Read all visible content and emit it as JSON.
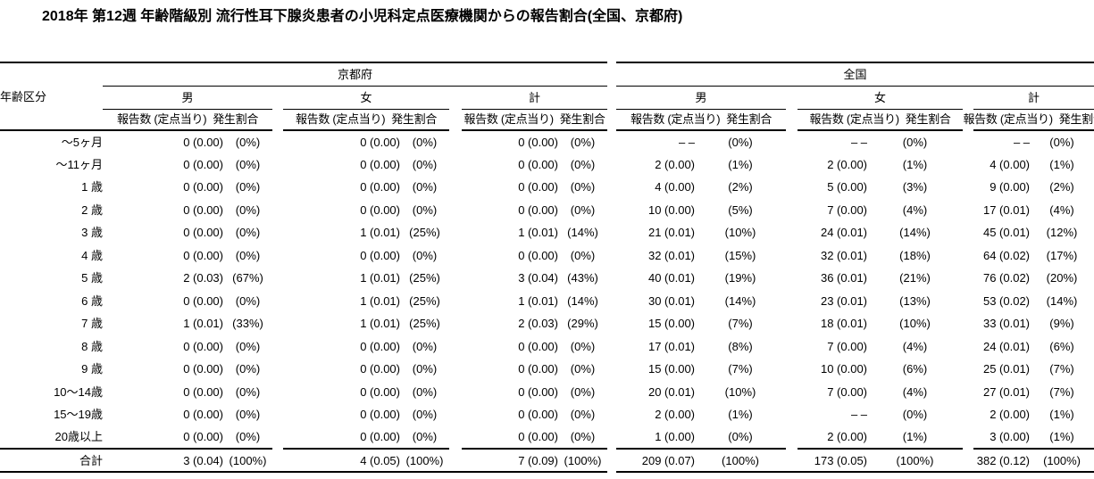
{
  "title": "2018年 第12週 年齢階級別 流行性耳下腺炎患者の小児科定点医療機関からの報告割合(全国、京都府)",
  "table": {
    "age_header": "年齢区分",
    "regions": [
      "京都府",
      "全国"
    ],
    "sex_labels": [
      "男",
      "女",
      "計"
    ],
    "subheaders": {
      "count": "報告数 (定点当り)",
      "rate": "発生割合"
    },
    "rows": [
      {
        "age": "〜5ヶ月",
        "cells": [
          "0 (0.00)",
          "(0%)",
          "0 (0.00)",
          "(0%)",
          "0 (0.00)",
          "(0%)",
          "– –",
          "(0%)",
          "– –",
          "(0%)",
          "– –",
          "(0%)"
        ]
      },
      {
        "age": "〜11ヶ月",
        "cells": [
          "0 (0.00)",
          "(0%)",
          "0 (0.00)",
          "(0%)",
          "0 (0.00)",
          "(0%)",
          "2 (0.00)",
          "(1%)",
          "2 (0.00)",
          "(1%)",
          "4 (0.00)",
          "(1%)"
        ]
      },
      {
        "age": "1 歳",
        "cells": [
          "0 (0.00)",
          "(0%)",
          "0 (0.00)",
          "(0%)",
          "0 (0.00)",
          "(0%)",
          "4 (0.00)",
          "(2%)",
          "5 (0.00)",
          "(3%)",
          "9 (0.00)",
          "(2%)"
        ]
      },
      {
        "age": "2 歳",
        "cells": [
          "0 (0.00)",
          "(0%)",
          "0 (0.00)",
          "(0%)",
          "0 (0.00)",
          "(0%)",
          "10 (0.00)",
          "(5%)",
          "7 (0.00)",
          "(4%)",
          "17 (0.01)",
          "(4%)"
        ]
      },
      {
        "age": "3 歳",
        "cells": [
          "0 (0.00)",
          "(0%)",
          "1 (0.01)",
          "(25%)",
          "1 (0.01)",
          "(14%)",
          "21 (0.01)",
          "(10%)",
          "24 (0.01)",
          "(14%)",
          "45 (0.01)",
          "(12%)"
        ]
      },
      {
        "age": "4 歳",
        "cells": [
          "0 (0.00)",
          "(0%)",
          "0 (0.00)",
          "(0%)",
          "0 (0.00)",
          "(0%)",
          "32 (0.01)",
          "(15%)",
          "32 (0.01)",
          "(18%)",
          "64 (0.02)",
          "(17%)"
        ]
      },
      {
        "age": "5 歳",
        "cells": [
          "2 (0.03)",
          "(67%)",
          "1 (0.01)",
          "(25%)",
          "3 (0.04)",
          "(43%)",
          "40 (0.01)",
          "(19%)",
          "36 (0.01)",
          "(21%)",
          "76 (0.02)",
          "(20%)"
        ]
      },
      {
        "age": "6 歳",
        "cells": [
          "0 (0.00)",
          "(0%)",
          "1 (0.01)",
          "(25%)",
          "1 (0.01)",
          "(14%)",
          "30 (0.01)",
          "(14%)",
          "23 (0.01)",
          "(13%)",
          "53 (0.02)",
          "(14%)"
        ]
      },
      {
        "age": "7 歳",
        "cells": [
          "1 (0.01)",
          "(33%)",
          "1 (0.01)",
          "(25%)",
          "2 (0.03)",
          "(29%)",
          "15 (0.00)",
          "(7%)",
          "18 (0.01)",
          "(10%)",
          "33 (0.01)",
          "(9%)"
        ]
      },
      {
        "age": "8 歳",
        "cells": [
          "0 (0.00)",
          "(0%)",
          "0 (0.00)",
          "(0%)",
          "0 (0.00)",
          "(0%)",
          "17 (0.01)",
          "(8%)",
          "7 (0.00)",
          "(4%)",
          "24 (0.01)",
          "(6%)"
        ]
      },
      {
        "age": "9 歳",
        "cells": [
          "0 (0.00)",
          "(0%)",
          "0 (0.00)",
          "(0%)",
          "0 (0.00)",
          "(0%)",
          "15 (0.00)",
          "(7%)",
          "10 (0.00)",
          "(6%)",
          "25 (0.01)",
          "(7%)"
        ]
      },
      {
        "age": "10〜14歳",
        "cells": [
          "0 (0.00)",
          "(0%)",
          "0 (0.00)",
          "(0%)",
          "0 (0.00)",
          "(0%)",
          "20 (0.01)",
          "(10%)",
          "7 (0.00)",
          "(4%)",
          "27 (0.01)",
          "(7%)"
        ]
      },
      {
        "age": "15〜19歳",
        "cells": [
          "0 (0.00)",
          "(0%)",
          "0 (0.00)",
          "(0%)",
          "0 (0.00)",
          "(0%)",
          "2 (0.00)",
          "(1%)",
          "– –",
          "(0%)",
          "2 (0.00)",
          "(1%)"
        ]
      },
      {
        "age": "20歳以上",
        "cells": [
          "0 (0.00)",
          "(0%)",
          "0 (0.00)",
          "(0%)",
          "0 (0.00)",
          "(0%)",
          "1 (0.00)",
          "(0%)",
          "2 (0.00)",
          "(1%)",
          "3 (0.00)",
          "(1%)"
        ]
      },
      {
        "age": "合計",
        "cells": [
          "3 (0.04)",
          "(100%)",
          "4 (0.05)",
          "(100%)",
          "7 (0.09)",
          "(100%)",
          "209 (0.07)",
          "(100%)",
          "173 (0.05)",
          "(100%)",
          "382 (0.12)",
          "(100%)"
        ]
      }
    ]
  }
}
